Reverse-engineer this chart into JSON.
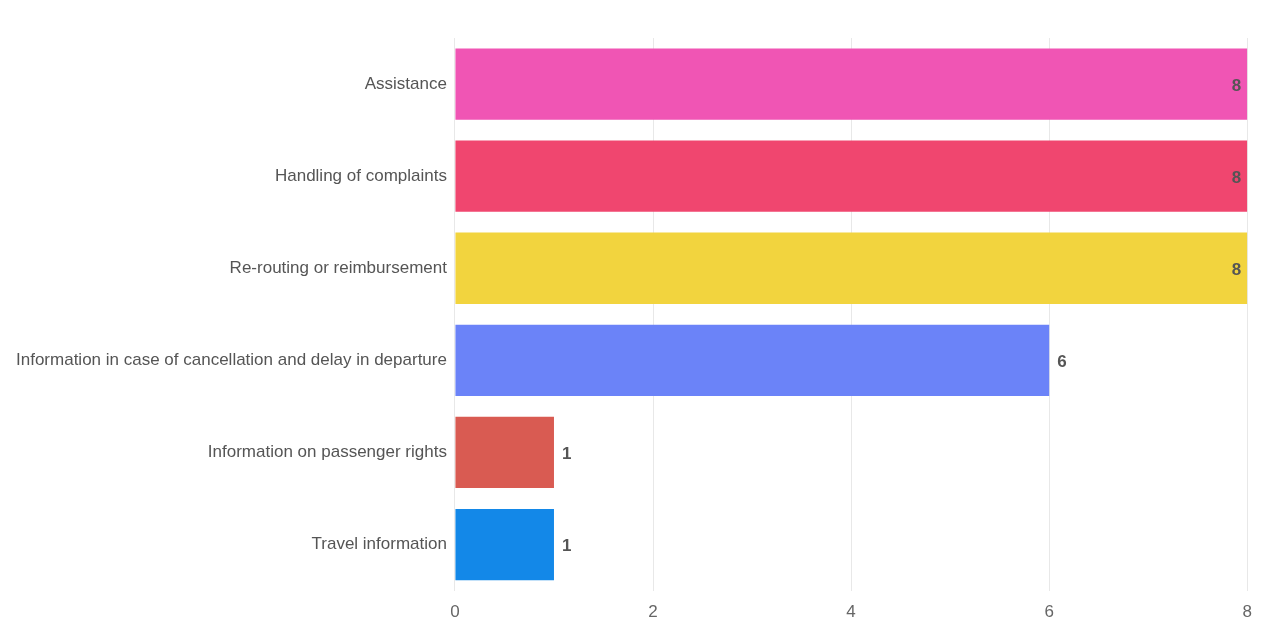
{
  "chart_data": {
    "type": "bar",
    "orientation": "horizontal",
    "categories": [
      "Assistance",
      "Handling of complaints",
      "Re-routing or reimbursement",
      "Information in case of cancellation and delay in departure",
      "Information on passenger rights",
      "Travel information"
    ],
    "values": [
      8,
      8,
      8,
      6,
      1,
      1
    ],
    "colors": [
      "#f055b4",
      "#f0466f",
      "#f2d43e",
      "#6b83f8",
      "#d95b52",
      "#1388e8"
    ],
    "xlim": [
      0,
      8
    ],
    "xticks": [
      0,
      2,
      4,
      6,
      8
    ],
    "grid": "x",
    "data_labels": true,
    "legend": false
  }
}
